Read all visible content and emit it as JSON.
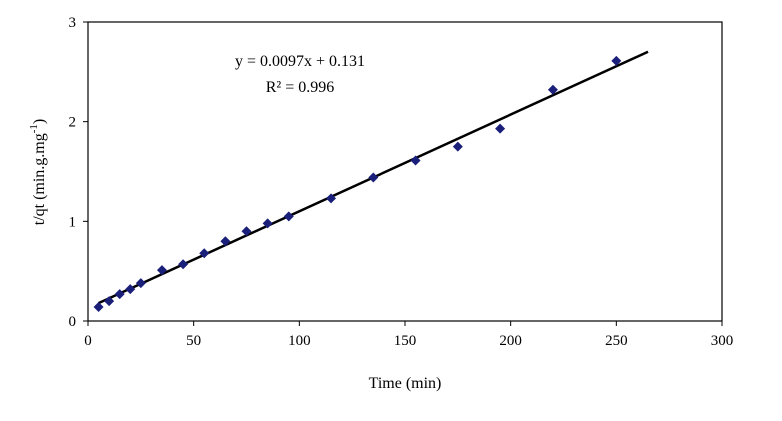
{
  "chart_data": {
    "type": "scatter",
    "xlabel": "Time (min)",
    "ylabel": "t/qt (min.g.mg",
    "ylabel_sup": "-1",
    "ylabel_close": ")",
    "xlim": [
      0,
      300
    ],
    "ylim": [
      0,
      3
    ],
    "x_ticks": [
      0,
      50,
      100,
      150,
      200,
      250,
      300
    ],
    "y_ticks": [
      0,
      1,
      2,
      3
    ],
    "grid": false,
    "marker_color": "#1a1f7a",
    "points": [
      {
        "x": 5,
        "y": 0.14
      },
      {
        "x": 10,
        "y": 0.2
      },
      {
        "x": 15,
        "y": 0.27
      },
      {
        "x": 20,
        "y": 0.32
      },
      {
        "x": 25,
        "y": 0.38
      },
      {
        "x": 35,
        "y": 0.51
      },
      {
        "x": 45,
        "y": 0.57
      },
      {
        "x": 55,
        "y": 0.68
      },
      {
        "x": 65,
        "y": 0.8
      },
      {
        "x": 75,
        "y": 0.9
      },
      {
        "x": 85,
        "y": 0.98
      },
      {
        "x": 95,
        "y": 1.05
      },
      {
        "x": 115,
        "y": 1.23
      },
      {
        "x": 135,
        "y": 1.44
      },
      {
        "x": 155,
        "y": 1.61
      },
      {
        "x": 175,
        "y": 1.75
      },
      {
        "x": 195,
        "y": 1.93
      },
      {
        "x": 220,
        "y": 2.32
      },
      {
        "x": 250,
        "y": 2.61
      }
    ],
    "trendline": {
      "slope": 0.0097,
      "intercept": 0.131,
      "x_range": [
        5,
        265
      ],
      "equation": "y = 0.0097x + 0.131",
      "r_squared": "R² = 0.996"
    }
  }
}
